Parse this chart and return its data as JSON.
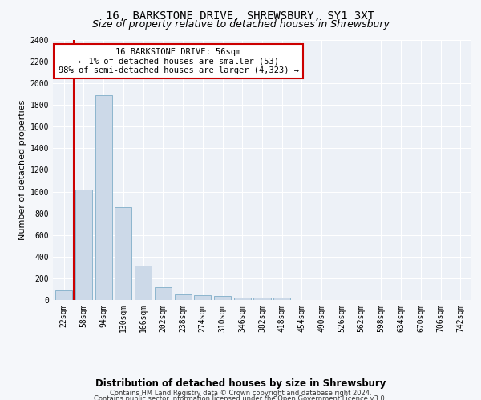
{
  "title1": "16, BARKSTONE DRIVE, SHREWSBURY, SY1 3XT",
  "title2": "Size of property relative to detached houses in Shrewsbury",
  "xlabel": "Distribution of detached houses by size in Shrewsbury",
  "ylabel": "Number of detached properties",
  "categories": [
    "22sqm",
    "58sqm",
    "94sqm",
    "130sqm",
    "166sqm",
    "202sqm",
    "238sqm",
    "274sqm",
    "310sqm",
    "346sqm",
    "382sqm",
    "418sqm",
    "454sqm",
    "490sqm",
    "526sqm",
    "562sqm",
    "598sqm",
    "634sqm",
    "670sqm",
    "706sqm",
    "742sqm"
  ],
  "values": [
    90,
    1020,
    1890,
    860,
    320,
    115,
    55,
    45,
    35,
    20,
    20,
    20,
    0,
    0,
    0,
    0,
    0,
    0,
    0,
    0,
    0
  ],
  "bar_color": "#ccd9e8",
  "bar_edge_color": "#7faec8",
  "annotation_text": "16 BARKSTONE DRIVE: 56sqm\n← 1% of detached houses are smaller (53)\n98% of semi-detached houses are larger (4,323) →",
  "annotation_box_color": "#ffffff",
  "annotation_border_color": "#cc0000",
  "vline_x": 0.5,
  "ylim": [
    0,
    2400
  ],
  "yticks": [
    0,
    200,
    400,
    600,
    800,
    1000,
    1200,
    1400,
    1600,
    1800,
    2000,
    2200,
    2400
  ],
  "footer1": "Contains HM Land Registry data © Crown copyright and database right 2024.",
  "footer2": "Contains public sector information licensed under the Open Government Licence v3.0.",
  "bg_color": "#edf1f7",
  "grid_color": "#ffffff",
  "fig_bg_color": "#f5f7fa",
  "title1_fontsize": 10,
  "title2_fontsize": 9,
  "xlabel_fontsize": 8.5,
  "ylabel_fontsize": 8,
  "tick_fontsize": 7,
  "annotation_fontsize": 7.5,
  "footer_fontsize": 6
}
